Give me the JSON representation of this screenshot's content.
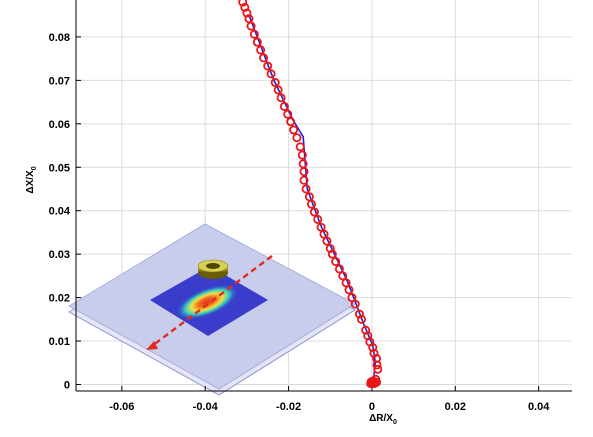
{
  "chart_data": {
    "type": "scatter",
    "xlabel_main": "ΔR/X",
    "xlabel_sub": "0",
    "ylabel_main": "ΔX/X",
    "ylabel_sub": "0",
    "xlim": [
      -0.071,
      0.048
    ],
    "ylim": [
      -0.0015,
      0.0885
    ],
    "xticks": [
      {
        "value": -0.06,
        "label": "-0.06"
      },
      {
        "value": -0.04,
        "label": "-0.04"
      },
      {
        "value": -0.02,
        "label": "-0.02"
      },
      {
        "value": 0,
        "label": "0"
      },
      {
        "value": 0.02,
        "label": "0.02"
      },
      {
        "value": 0.04,
        "label": "0.04"
      }
    ],
    "yticks": [
      {
        "value": 0,
        "label": "0"
      },
      {
        "value": 0.01,
        "label": "0.01"
      },
      {
        "value": 0.02,
        "label": "0.02"
      },
      {
        "value": 0.03,
        "label": "0.03"
      },
      {
        "value": 0.04,
        "label": "0.04"
      },
      {
        "value": 0.05,
        "label": "0.05"
      },
      {
        "value": 0.06,
        "label": "0.06"
      },
      {
        "value": 0.07,
        "label": "0.07"
      },
      {
        "value": 0.08,
        "label": "0.08"
      }
    ],
    "grid": true,
    "colors": {
      "markers": "#e8171b",
      "line": "#2222cc",
      "grid": "#dcdcdc",
      "axis": "#000000"
    },
    "series": [
      {
        "marker": "circle",
        "points": [
          [
            0.0005,
            0.0002
          ],
          [
            0.0008,
            0.0004
          ],
          [
            0.0002,
            0.0003
          ],
          [
            -0.0003,
            0.0002
          ],
          [
            0.0011,
            0.0005
          ],
          [
            0.0003,
            0.0008
          ],
          [
            0.0009,
            0.0012
          ],
          [
            -0.0002,
            0.0006
          ],
          [
            0.0014,
            0.0035
          ],
          [
            0.0012,
            0.0045
          ],
          [
            0.0011,
            0.006
          ],
          [
            0.0005,
            0.0072
          ],
          [
            0.0002,
            0.0085
          ],
          [
            -0.0005,
            0.0098
          ],
          [
            -0.001,
            0.0112
          ],
          [
            -0.0015,
            0.0125
          ],
          [
            -0.0025,
            0.015
          ],
          [
            -0.003,
            0.0162
          ],
          [
            -0.004,
            0.0185
          ],
          [
            -0.0048,
            0.02
          ],
          [
            -0.0055,
            0.0218
          ],
          [
            -0.0062,
            0.0234
          ],
          [
            -0.007,
            0.025
          ],
          [
            -0.0078,
            0.0266
          ],
          [
            -0.0087,
            0.0283
          ],
          [
            -0.0095,
            0.03
          ],
          [
            -0.01,
            0.0313
          ],
          [
            -0.0108,
            0.033
          ],
          [
            -0.0115,
            0.0346
          ],
          [
            -0.0122,
            0.0362
          ],
          [
            -0.013,
            0.038
          ],
          [
            -0.0138,
            0.0397
          ],
          [
            -0.0145,
            0.0415
          ],
          [
            -0.015,
            0.0432
          ],
          [
            -0.0158,
            0.045
          ],
          [
            -0.0163,
            0.047
          ],
          [
            -0.0163,
            0.049
          ],
          [
            -0.0165,
            0.0508
          ],
          [
            -0.0167,
            0.0528
          ],
          [
            -0.0172,
            0.0547
          ],
          [
            -0.018,
            0.0568
          ],
          [
            -0.0188,
            0.0586
          ],
          [
            -0.0195,
            0.0605
          ],
          [
            -0.0202,
            0.0622
          ],
          [
            -0.021,
            0.064
          ],
          [
            -0.0218,
            0.066
          ],
          [
            -0.0225,
            0.0678
          ],
          [
            -0.0232,
            0.0695
          ],
          [
            -0.0242,
            0.0715
          ],
          [
            -0.025,
            0.0733
          ],
          [
            -0.026,
            0.0752
          ],
          [
            -0.0267,
            0.077
          ],
          [
            -0.0275,
            0.0788
          ],
          [
            -0.0282,
            0.0806
          ],
          [
            -0.029,
            0.0825
          ],
          [
            -0.0295,
            0.0842
          ],
          [
            -0.03,
            0.0855
          ],
          [
            -0.0305,
            0.0868
          ],
          [
            -0.031,
            0.088
          ]
        ]
      },
      {
        "marker": "line",
        "points": [
          [
            0.0003,
            0.0005
          ],
          [
            0.0008,
            0.005
          ],
          [
            0.0002,
            0.009
          ],
          [
            -0.002,
            0.014
          ],
          [
            -0.004,
            0.019
          ],
          [
            -0.006,
            0.024
          ],
          [
            -0.008,
            0.028
          ],
          [
            -0.01,
            0.032
          ],
          [
            -0.012,
            0.036
          ],
          [
            -0.014,
            0.041
          ],
          [
            -0.0155,
            0.045
          ],
          [
            -0.016,
            0.051
          ],
          [
            -0.0165,
            0.057
          ],
          [
            -0.019,
            0.061
          ],
          [
            -0.021,
            0.065
          ],
          [
            -0.0235,
            0.07
          ],
          [
            -0.0255,
            0.075
          ],
          [
            -0.0275,
            0.08
          ],
          [
            -0.0295,
            0.085
          ]
        ]
      }
    ]
  }
}
